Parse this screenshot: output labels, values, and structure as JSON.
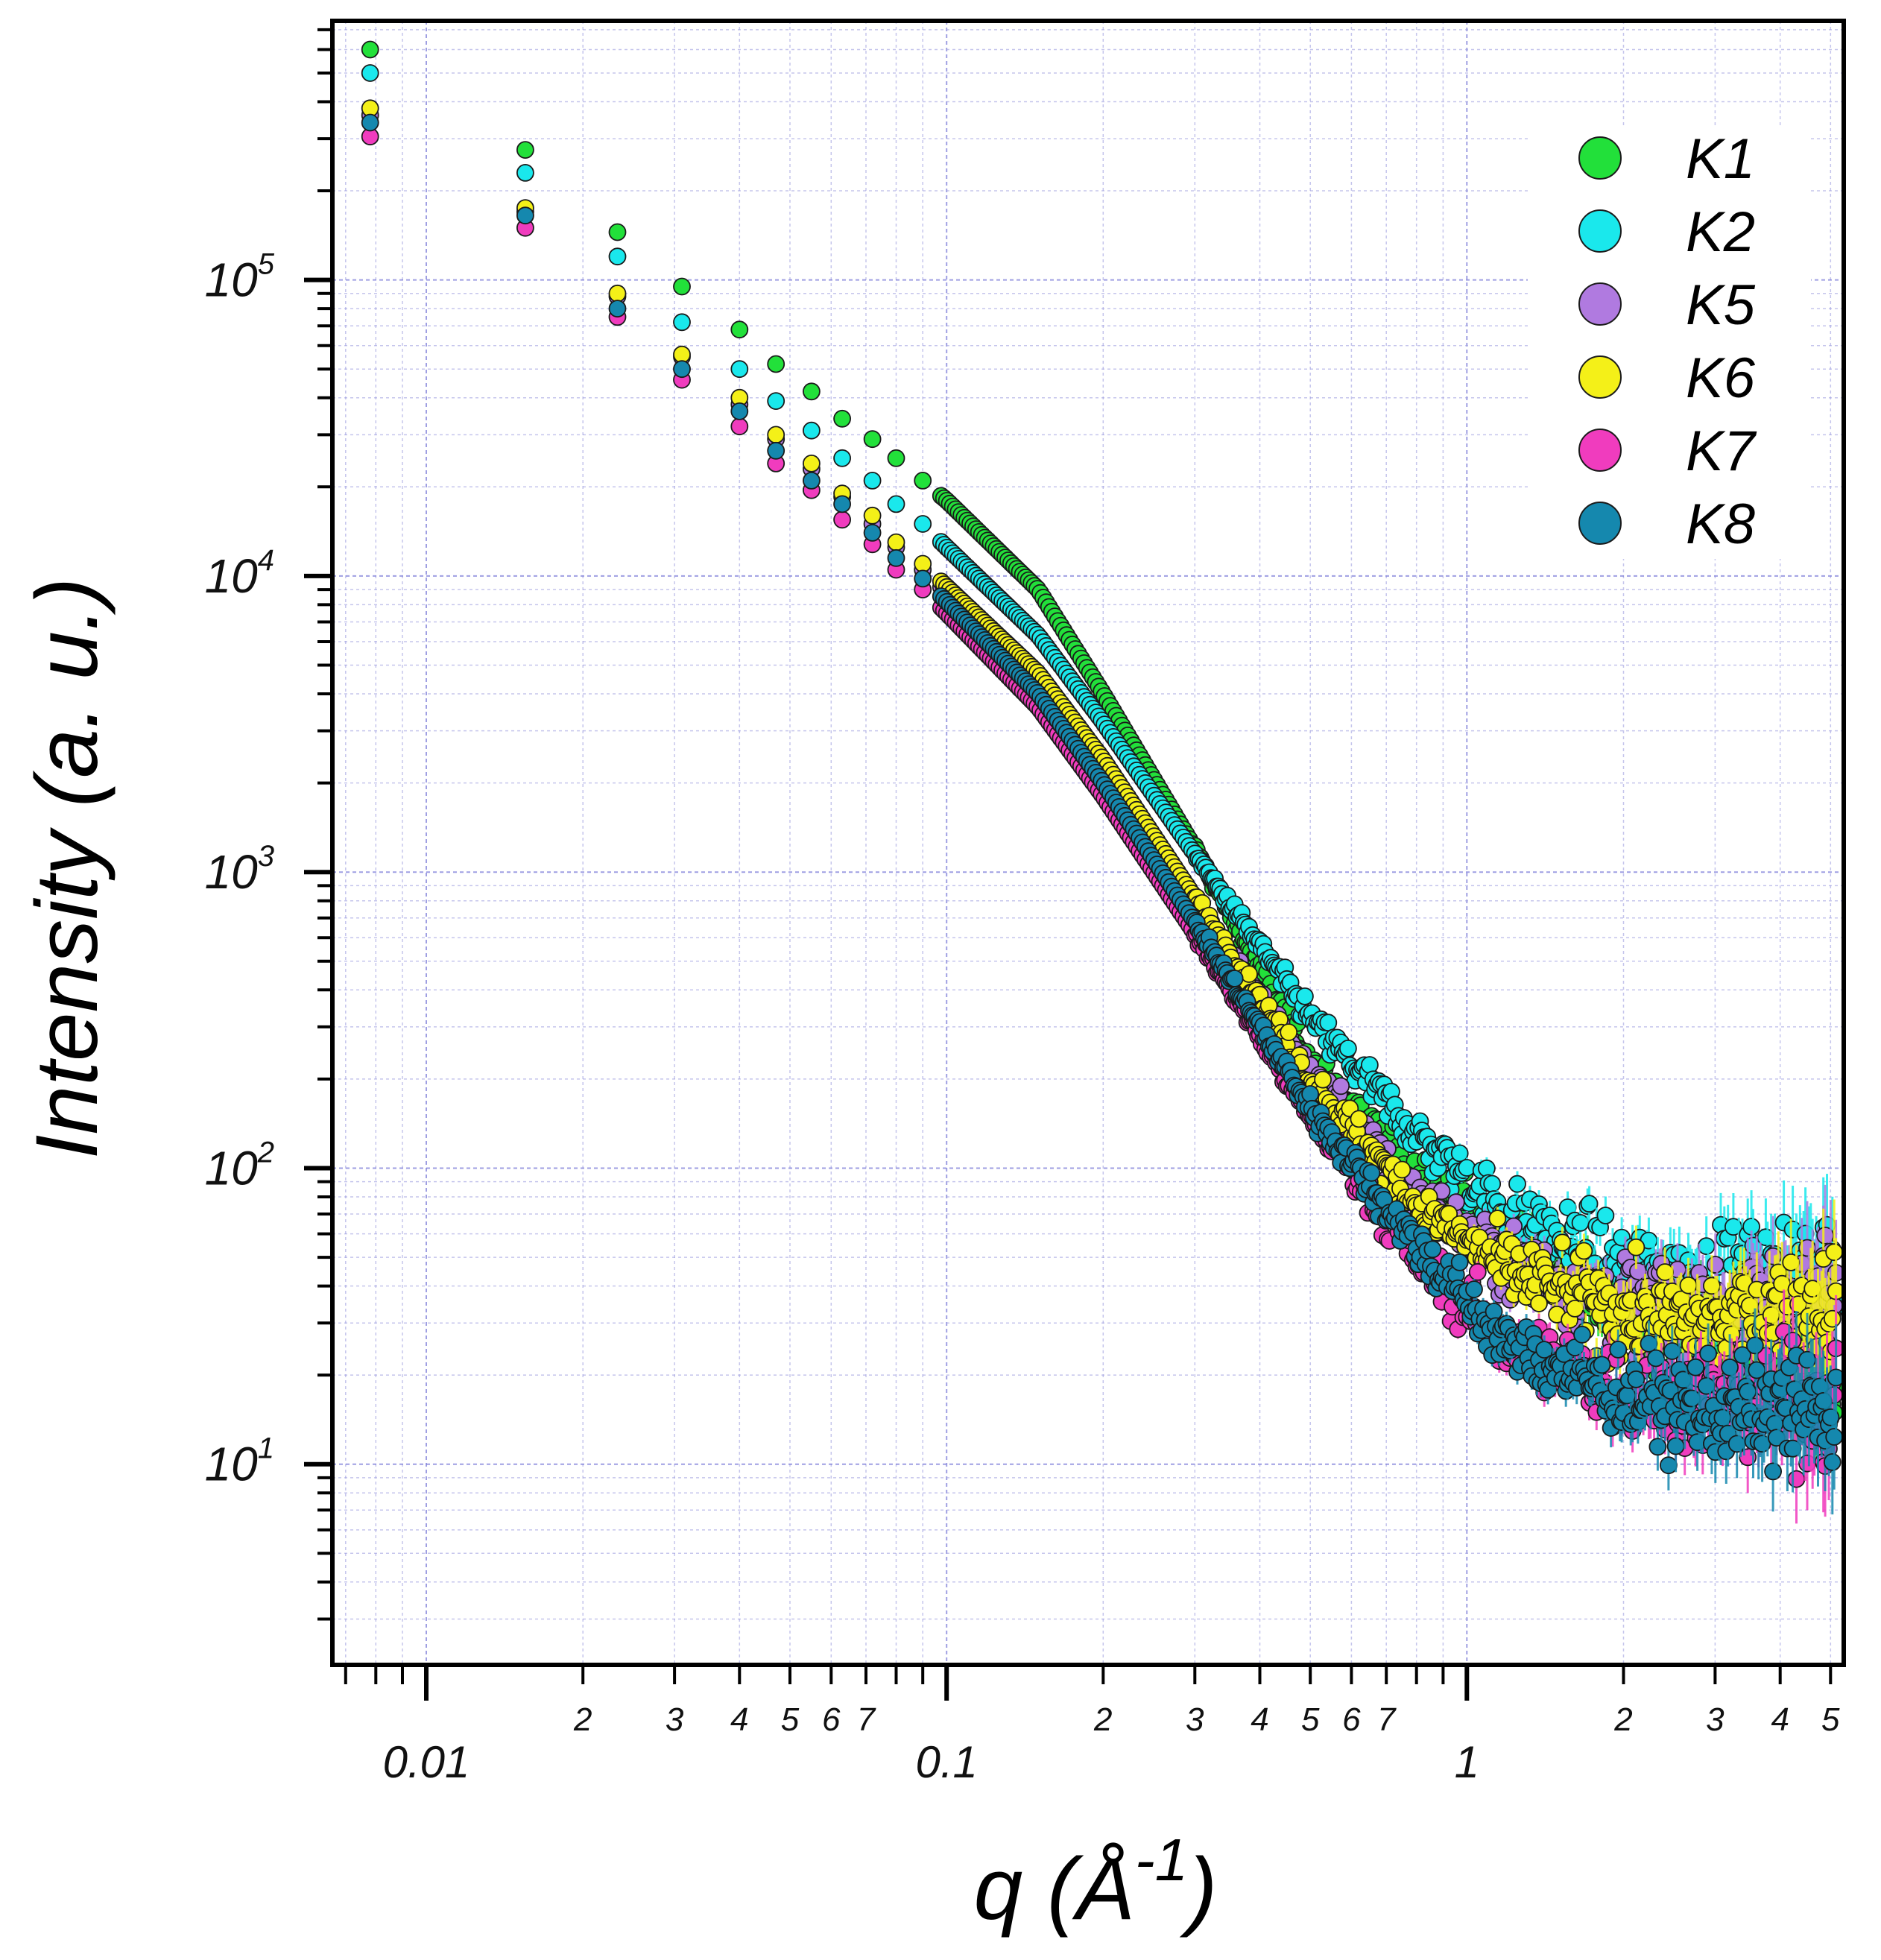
{
  "chart_data": {
    "type": "scatter",
    "title": "",
    "xscale": "log",
    "yscale": "log",
    "xlim": [
      0.0066,
      5.3
    ],
    "ylim": [
      2.1,
      750000
    ],
    "xlabel": {
      "prefix": "q (",
      "unit": "Å",
      "exponent": "-1",
      "suffix": ")"
    },
    "ylabel": "Intensity (a. u.)",
    "grid": true,
    "legend_position": "top-right",
    "x_major_ticks": [
      {
        "value": 0.01,
        "label": "0.01"
      },
      {
        "value": 0.1,
        "label": "0.1"
      },
      {
        "value": 1,
        "label": "1"
      }
    ],
    "x_minor_tick_labels": [
      {
        "value": 0.02,
        "label": "2"
      },
      {
        "value": 0.03,
        "label": "3"
      },
      {
        "value": 0.04,
        "label": "4"
      },
      {
        "value": 0.05,
        "label": "5"
      },
      {
        "value": 0.06,
        "label": "6"
      },
      {
        "value": 0.07,
        "label": "7"
      },
      {
        "value": 0.2,
        "label": "2"
      },
      {
        "value": 0.3,
        "label": "3"
      },
      {
        "value": 0.4,
        "label": "4"
      },
      {
        "value": 0.5,
        "label": "5"
      },
      {
        "value": 0.6,
        "label": "6"
      },
      {
        "value": 0.7,
        "label": "7"
      },
      {
        "value": 2,
        "label": "2"
      },
      {
        "value": 3,
        "label": "3"
      },
      {
        "value": 4,
        "label": "4"
      },
      {
        "value": 5,
        "label": "5"
      }
    ],
    "y_major_ticks": [
      {
        "value": 10,
        "base": "10",
        "exp": "1"
      },
      {
        "value": 100,
        "base": "10",
        "exp": "2"
      },
      {
        "value": 1000,
        "base": "10",
        "exp": "3"
      },
      {
        "value": 10000,
        "base": "10",
        "exp": "4"
      },
      {
        "value": 100000,
        "base": "10",
        "exp": "5"
      }
    ],
    "series": [
      {
        "name": "K1",
        "color": "#22e03a",
        "anchors": [
          [
            0.0078,
            600000
          ],
          [
            0.0155,
            275000
          ],
          [
            0.0233,
            145000
          ],
          [
            0.031,
            95000
          ],
          [
            0.04,
            68000
          ],
          [
            0.047,
            52000
          ],
          [
            0.055,
            42000
          ],
          [
            0.063,
            34000
          ],
          [
            0.072,
            29000
          ],
          [
            0.08,
            25000
          ],
          [
            0.09,
            21000
          ],
          [
            0.1,
            18000
          ],
          [
            0.15,
            9000
          ],
          [
            0.2,
            4000
          ],
          [
            0.3,
            1200
          ],
          [
            0.5,
            230
          ],
          [
            0.8,
            95
          ],
          [
            1.2,
            55
          ],
          [
            2,
            32
          ],
          [
            3,
            25
          ],
          [
            5,
            20
          ]
        ]
      },
      {
        "name": "K2",
        "color": "#1ae8ec",
        "anchors": [
          [
            0.0078,
            500000
          ],
          [
            0.0155,
            230000
          ],
          [
            0.0233,
            120000
          ],
          [
            0.031,
            72000
          ],
          [
            0.04,
            50000
          ],
          [
            0.047,
            39000
          ],
          [
            0.055,
            31000
          ],
          [
            0.063,
            25000
          ],
          [
            0.072,
            21000
          ],
          [
            0.08,
            17500
          ],
          [
            0.09,
            15000
          ],
          [
            0.1,
            12500
          ],
          [
            0.15,
            6300
          ],
          [
            0.2,
            3200
          ],
          [
            0.3,
            1150
          ],
          [
            0.5,
            320
          ],
          [
            0.8,
            130
          ],
          [
            1.2,
            70
          ],
          [
            2,
            45
          ],
          [
            3,
            42
          ],
          [
            5,
            45
          ]
        ]
      },
      {
        "name": "K5",
        "color": "#b07ae0",
        "anchors": [
          [
            0.0078,
            360000
          ],
          [
            0.0155,
            170000
          ],
          [
            0.0233,
            88000
          ],
          [
            0.031,
            55000
          ],
          [
            0.04,
            38000
          ],
          [
            0.047,
            29000
          ],
          [
            0.055,
            23000
          ],
          [
            0.063,
            18500
          ],
          [
            0.072,
            15000
          ],
          [
            0.08,
            12500
          ],
          [
            0.09,
            10500
          ],
          [
            0.1,
            8800
          ],
          [
            0.15,
            4500
          ],
          [
            0.2,
            2300
          ],
          [
            0.3,
            800
          ],
          [
            0.5,
            210
          ],
          [
            0.8,
            80
          ],
          [
            1.2,
            48
          ],
          [
            2,
            35
          ],
          [
            3,
            33
          ],
          [
            5,
            38
          ]
        ]
      },
      {
        "name": "K6",
        "color": "#f4f018",
        "anchors": [
          [
            0.0078,
            380000
          ],
          [
            0.0155,
            175000
          ],
          [
            0.0233,
            90000
          ],
          [
            0.031,
            56000
          ],
          [
            0.04,
            40000
          ],
          [
            0.047,
            30000
          ],
          [
            0.055,
            24000
          ],
          [
            0.063,
            19000
          ],
          [
            0.072,
            16000
          ],
          [
            0.08,
            13000
          ],
          [
            0.09,
            11000
          ],
          [
            0.1,
            9200
          ],
          [
            0.15,
            4700
          ],
          [
            0.2,
            2400
          ],
          [
            0.3,
            820
          ],
          [
            0.5,
            200
          ],
          [
            0.8,
            75
          ],
          [
            1.2,
            45
          ],
          [
            2,
            32
          ],
          [
            3,
            30
          ],
          [
            5,
            34
          ]
        ]
      },
      {
        "name": "K7",
        "color": "#f03cbe",
        "anchors": [
          [
            0.0078,
            305000
          ],
          [
            0.0155,
            150000
          ],
          [
            0.0233,
            75000
          ],
          [
            0.031,
            46000
          ],
          [
            0.04,
            32000
          ],
          [
            0.047,
            24000
          ],
          [
            0.055,
            19500
          ],
          [
            0.063,
            15500
          ],
          [
            0.072,
            12800
          ],
          [
            0.08,
            10500
          ],
          [
            0.09,
            9000
          ],
          [
            0.1,
            7500
          ],
          [
            0.15,
            3600
          ],
          [
            0.2,
            1800
          ],
          [
            0.3,
            620
          ],
          [
            0.5,
            150
          ],
          [
            0.8,
            50
          ],
          [
            1.2,
            25
          ],
          [
            2,
            18
          ],
          [
            3,
            16
          ],
          [
            5,
            16
          ]
        ]
      },
      {
        "name": "K8",
        "color": "#1588ae",
        "anchors": [
          [
            0.0078,
            340000
          ],
          [
            0.0155,
            165000
          ],
          [
            0.0233,
            80000
          ],
          [
            0.031,
            50000
          ],
          [
            0.04,
            36000
          ],
          [
            0.047,
            26500
          ],
          [
            0.055,
            21000
          ],
          [
            0.063,
            17500
          ],
          [
            0.072,
            14000
          ],
          [
            0.08,
            11500
          ],
          [
            0.09,
            9800
          ],
          [
            0.1,
            8200
          ],
          [
            0.15,
            4000
          ],
          [
            0.2,
            2000
          ],
          [
            0.3,
            680
          ],
          [
            0.5,
            160
          ],
          [
            0.8,
            55
          ],
          [
            1.2,
            25
          ],
          [
            2,
            17
          ],
          [
            3,
            15
          ],
          [
            5,
            15
          ]
        ]
      }
    ]
  }
}
